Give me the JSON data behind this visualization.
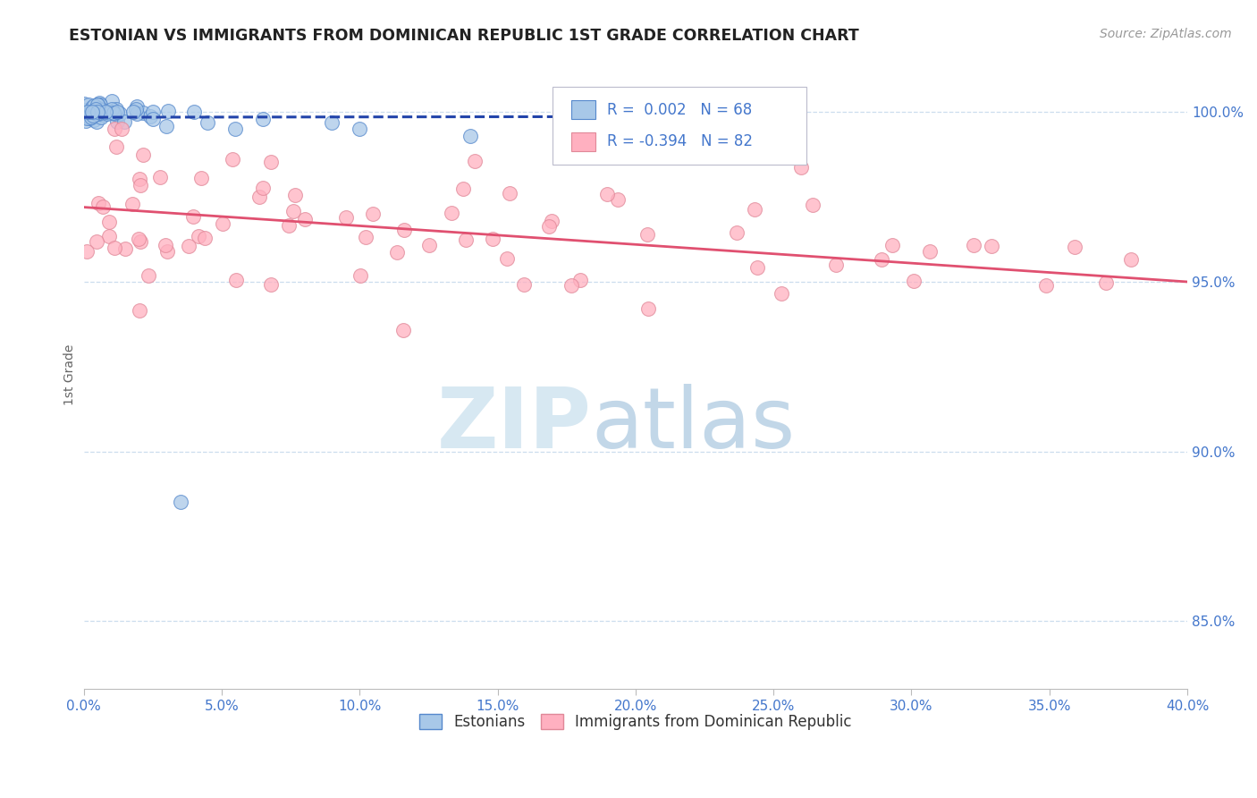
{
  "title": "ESTONIAN VS IMMIGRANTS FROM DOMINICAN REPUBLIC 1ST GRADE CORRELATION CHART",
  "source": "Source: ZipAtlas.com",
  "legend_label1": "Estonians",
  "legend_label2": "Immigrants from Dominican Republic",
  "r1": 0.002,
  "n1": 68,
  "r2": -0.394,
  "n2": 82,
  "blue_fill": "#a8c8e8",
  "blue_edge": "#5588cc",
  "pink_fill": "#ffb0c0",
  "pink_edge": "#e08898",
  "blue_line_color": "#2244aa",
  "pink_line_color": "#e05070",
  "title_color": "#222222",
  "axis_label_color": "#4477cc",
  "grid_color": "#ccddee",
  "background_color": "#ffffff",
  "xmin": 0.0,
  "xmax": 0.4,
  "ymin": 83.0,
  "ymax": 101.5,
  "yticks": [
    85.0,
    90.0,
    95.0,
    100.0
  ],
  "blue_trend_x": [
    0.0,
    0.2
  ],
  "blue_trend_y": [
    99.85,
    99.87
  ],
  "pink_trend_x": [
    0.0,
    0.4
  ],
  "pink_trend_y": [
    97.2,
    95.0
  ],
  "marker_size": 130,
  "watermark_zip_color": "#ccdded",
  "watermark_atlas_color": "#b0ccdd"
}
